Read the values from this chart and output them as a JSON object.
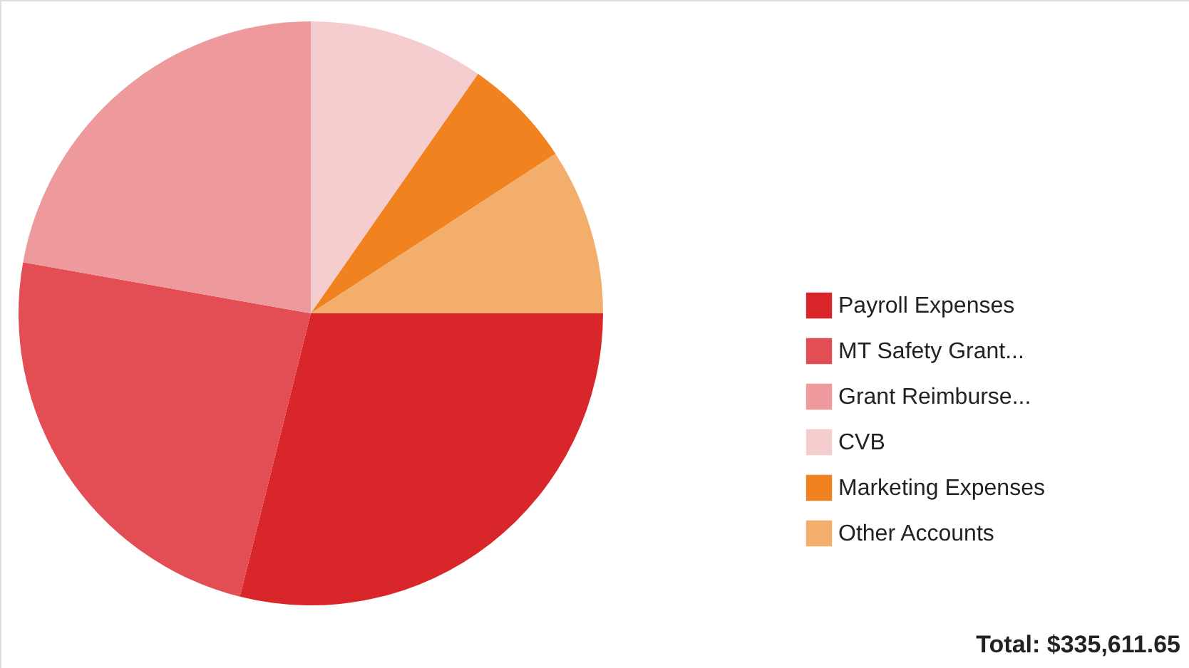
{
  "chart_data": {
    "type": "pie",
    "categories": [
      "Payroll Expenses",
      "MT Safety Grant...",
      "Grant Reimburse...",
      "CVB",
      "Marketing Expenses",
      "Other Accounts"
    ],
    "values": [
      28.9,
      23.9,
      22.2,
      9.7,
      6.1,
      9.2
    ],
    "colors": [
      "#d9262b",
      "#e24e53",
      "#ee9a9c",
      "#f6cdce",
      "#f0821f",
      "#f4ae6c"
    ],
    "legend": "right",
    "annotations": [
      "Total: $335,611.65"
    ]
  }
}
